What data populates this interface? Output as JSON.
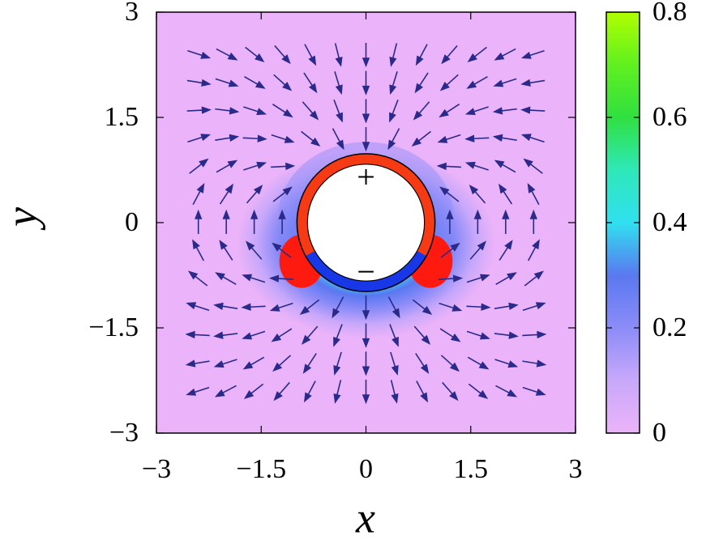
{
  "chart_data": {
    "type": "quiver",
    "xlabel": "x",
    "ylabel": "y",
    "xlim": [
      -3,
      3
    ],
    "ylim": [
      -3,
      3
    ],
    "xticks": [
      {
        "value": -3,
        "label": "−3"
      },
      {
        "value": -1.5,
        "label": "−1.5"
      },
      0,
      1.5,
      3
    ],
    "yticks": [
      {
        "value": -3,
        "label": "−3"
      },
      {
        "value": -1.5,
        "label": "−1.5"
      },
      0,
      1.5,
      3
    ],
    "zlim": [
      0,
      0.8
    ],
    "zticks": [
      0,
      0.2,
      0.4,
      0.6,
      0.8
    ],
    "colormap": [
      "#ebb3f9",
      "#c8a8fa",
      "#8c8cf8",
      "#5a78f0",
      "#30e0f0",
      "#2ee8b8",
      "#30e040",
      "#60f020",
      "#b0ff00"
    ],
    "over_color": "#ff1a10",
    "arrow_color": "#2a2a8a",
    "x": [
      -2.4,
      -2,
      -1.6,
      -1.2,
      -0.8,
      -0.4,
      0,
      0.4,
      0.8,
      1.2,
      1.6,
      2,
      2.4
    ],
    "y": [
      -2.4,
      -2,
      -1.6,
      -1.2,
      -0.8,
      -0.4,
      0,
      0.4,
      0.8,
      1.2,
      1.6,
      2,
      2.4
    ],
    "angles": [
      [
        -162,
        -152,
        -142,
        -131,
        -118,
        -104,
        -90,
        -76,
        -62,
        -49,
        -38,
        -28,
        -18
      ],
      [
        -171,
        -162,
        -150,
        -138,
        -123,
        -107,
        -90,
        -73,
        -57,
        -42,
        -30,
        -18,
        -9
      ],
      [
        177,
        -173,
        -162,
        -147,
        -131,
        -111,
        -90,
        -69,
        -49,
        -33,
        -18,
        -7,
        3
      ],
      [
        162,
        171,
        -177,
        -162,
        -142,
        -118,
        -90,
        -62,
        -38,
        -18,
        -3,
        9,
        18
      ],
      [
        142,
        150,
        162,
        177,
        null,
        null,
        null,
        null,
        null,
        3,
        18,
        30,
        38
      ],
      [
        118,
        123,
        131,
        142,
        null,
        null,
        null,
        null,
        null,
        38,
        49,
        57,
        62
      ],
      [
        90,
        90,
        90,
        90,
        null,
        null,
        null,
        null,
        null,
        90,
        90,
        90,
        90
      ],
      [
        62,
        57,
        49,
        38,
        null,
        null,
        null,
        null,
        null,
        142,
        131,
        123,
        118
      ],
      [
        38,
        30,
        18,
        3,
        null,
        null,
        null,
        null,
        null,
        177,
        162,
        150,
        142
      ],
      [
        18,
        9,
        -3,
        -18,
        -38,
        -62,
        -90,
        -118,
        -142,
        -162,
        -177,
        171,
        162
      ],
      [
        3,
        -7,
        -18,
        -33,
        -49,
        -69,
        -90,
        -111,
        -131,
        -147,
        -162,
        -173,
        177
      ],
      [
        -9,
        -18,
        -30,
        -42,
        -57,
        -73,
        -90,
        -107,
        -123,
        -138,
        -150,
        -162,
        -171
      ],
      [
        -18,
        -28,
        -38,
        -49,
        -62,
        -76,
        -90,
        -104,
        -118,
        -131,
        -142,
        -152,
        -162
      ]
    ],
    "particle": {
      "x": 0,
      "y": 0,
      "r": 1,
      "ring_color": "#f53a14",
      "arc_color": "#1838e8",
      "arc": [
        -151,
        -29
      ]
    },
    "annotations": [
      {
        "text": "+",
        "x": 0,
        "y": 0.6
      },
      {
        "text": "−",
        "x": 0,
        "y": -0.75
      }
    ]
  }
}
